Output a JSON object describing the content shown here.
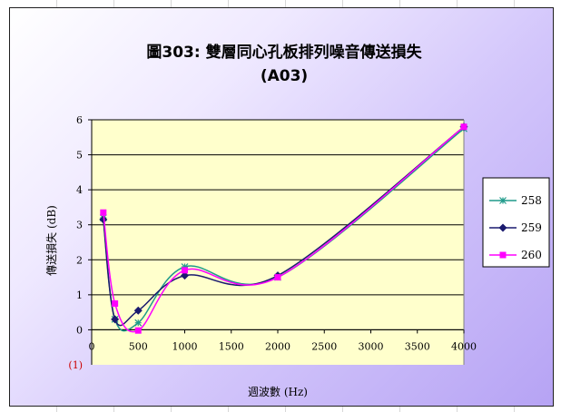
{
  "chart_data": {
    "type": "line",
    "title": "圖303: 雙層同心孔板排列噪音傳送損失",
    "subtitle": "(A03)",
    "xlabel": "週波數 (Hz)",
    "ylabel": "傳送損失 (dB)",
    "xlim": [
      0,
      4000
    ],
    "ylim": [
      -1,
      6
    ],
    "x_ticks": [
      0,
      500,
      1000,
      1500,
      2000,
      2500,
      3000,
      3500,
      4000
    ],
    "y_ticks": [
      0,
      1,
      2,
      3,
      4,
      5,
      6
    ],
    "y_min_label": "(1)",
    "grid": "horizontal",
    "legend_position": "right",
    "series": [
      {
        "name": "258",
        "color": "#1f9a8a",
        "marker": "star",
        "x": [
          125,
          250,
          500,
          1000,
          2000,
          4000
        ],
        "y": [
          3.2,
          0.3,
          0.2,
          1.8,
          1.5,
          5.75
        ]
      },
      {
        "name": "259",
        "color": "#1a1a6e",
        "marker": "diamond",
        "x": [
          125,
          250,
          500,
          1000,
          2000,
          4000
        ],
        "y": [
          3.15,
          0.3,
          0.55,
          1.55,
          1.55,
          5.8
        ]
      },
      {
        "name": "260",
        "color": "#ff00ff",
        "marker": "square",
        "x": [
          125,
          250,
          500,
          1000,
          2000,
          4000
        ],
        "y": [
          3.35,
          0.75,
          -0.02,
          1.7,
          1.5,
          5.8
        ]
      }
    ]
  }
}
